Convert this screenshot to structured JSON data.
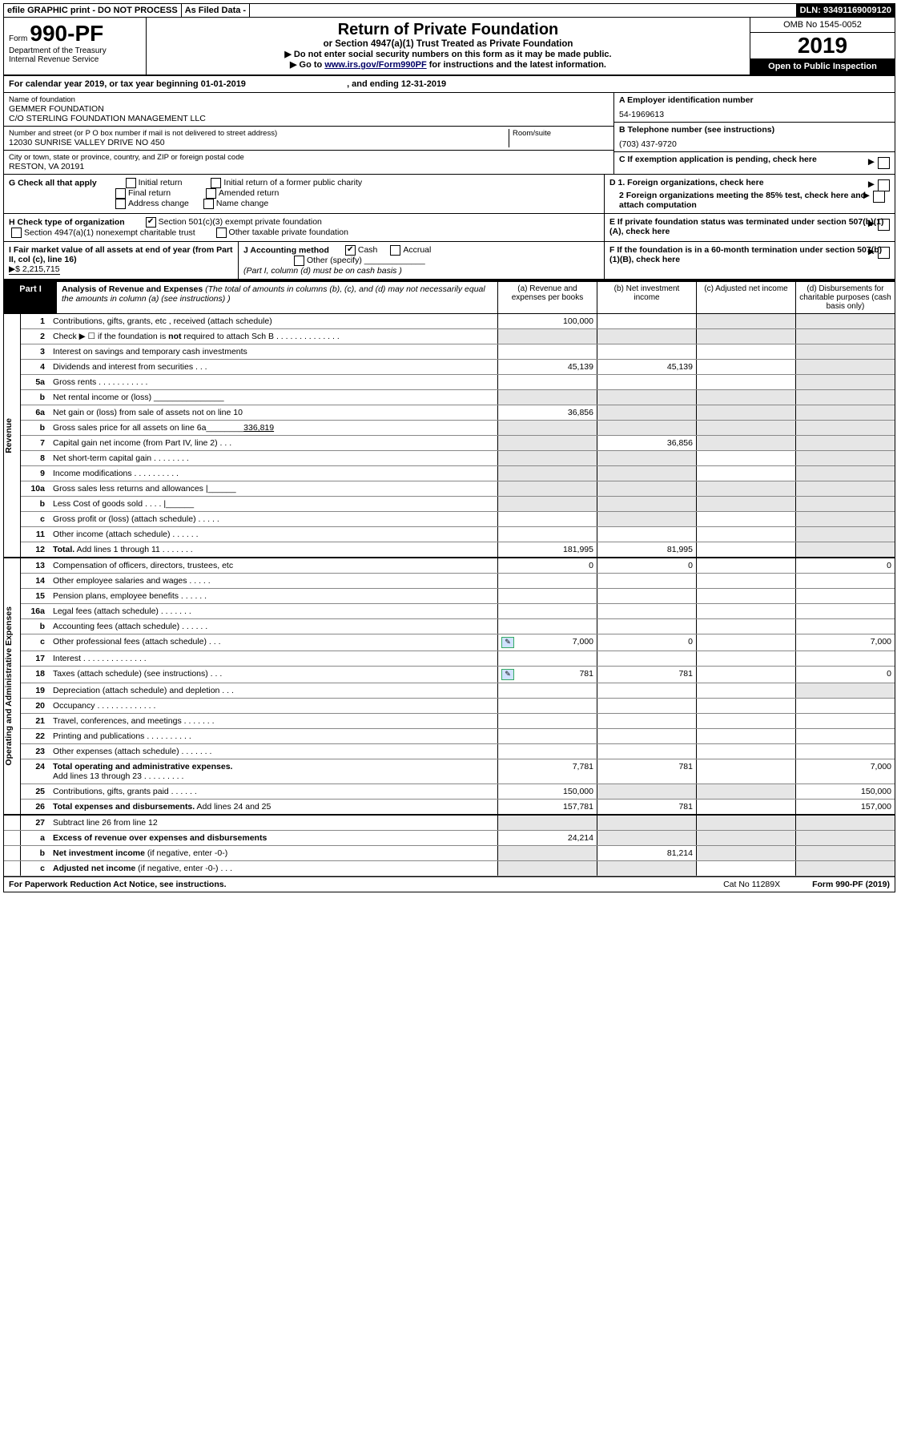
{
  "topbar": {
    "efile": "efile GRAPHIC print - DO NOT PROCESS",
    "asfiled": "As Filed Data -",
    "dln": "DLN: 93491169009120"
  },
  "header": {
    "form_prefix": "Form",
    "form_number": "990-PF",
    "dept": "Department of the Treasury",
    "irs": "Internal Revenue Service",
    "title": "Return of Private Foundation",
    "subtitle": "or Section 4947(a)(1) Trust Treated as Private Foundation",
    "note1": "▶ Do not enter social security numbers on this form as it may be made public.",
    "note2_pre": "▶ Go to ",
    "note2_link": "www.irs.gov/Form990PF",
    "note2_post": " for instructions and the latest information.",
    "omb": "OMB No 1545-0052",
    "year": "2019",
    "inspection": "Open to Public Inspection"
  },
  "cal_year": {
    "text_pre": "For calendar year 2019, or tax year beginning ",
    "begin": "01-01-2019",
    "text_mid": ", and ending ",
    "end": "12-31-2019"
  },
  "entity": {
    "name_label": "Name of foundation",
    "name1": "GEMMER FOUNDATION",
    "name2": "C/O STERLING FOUNDATION MANAGEMENT LLC",
    "addr_label": "Number and street (or P O  box number if mail is not delivered to street address)",
    "room_label": "Room/suite",
    "addr": "12030 SUNRISE VALLEY DRIVE NO 450",
    "city_label": "City or town, state or province, country, and ZIP or foreign postal code",
    "city": "RESTON, VA  20191",
    "a_label": "A Employer identification number",
    "a_val": "54-1969613",
    "b_label": "B Telephone number (see instructions)",
    "b_val": "(703) 437-9720",
    "c_label": "C If exemption application is pending, check here"
  },
  "checks": {
    "g_label": "G Check all that apply",
    "g_opts": [
      "Initial return",
      "Initial return of a former public charity",
      "Final return",
      "Amended return",
      "Address change",
      "Name change"
    ],
    "h_label": "H Check type of organization",
    "h_opt1": "Section 501(c)(3) exempt private foundation",
    "h_opt2": "Section 4947(a)(1) nonexempt charitable trust",
    "h_opt3": "Other taxable private foundation",
    "d1": "D 1. Foreign organizations, check here",
    "d2": "2 Foreign organizations meeting the 85% test, check here and attach computation",
    "e": "E  If private foundation status was terminated under section 507(b)(1)(A), check here",
    "i_label": "I Fair market value of all assets at end of year (from Part II, col  (c), line 16)",
    "i_val": "▶$  2,215,715",
    "j_label": "J Accounting method",
    "j_cash": "Cash",
    "j_accrual": "Accrual",
    "j_other": "Other (specify)",
    "j_note": "(Part I, column (d) must be on cash basis )",
    "f": "F  If the foundation is in a 60-month termination under section 507(b)(1)(B), check here"
  },
  "part1": {
    "label": "Part I",
    "desc_bold": "Analysis of Revenue and Expenses",
    "desc_rest": " (The total of amounts in columns (b), (c), and (d) may not necessarily equal the amounts in column (a) (see instructions) )",
    "col_a": "(a) Revenue and expenses per books",
    "col_b": "(b) Net investment income",
    "col_c": "(c) Adjusted net income",
    "col_d": "(d) Disbursements for charitable purposes (cash basis only)"
  },
  "sections": {
    "revenue": "Revenue",
    "expenses": "Operating and Administrative Expenses"
  },
  "lines": [
    {
      "n": "1",
      "d": "Contributions, gifts, grants, etc , received (attach schedule)",
      "a": "100,000",
      "shade_c": true,
      "shade_d": true
    },
    {
      "n": "2",
      "d": "Check ▶ ☐ if the foundation is <b>not</b> required to attach Sch B  .  .  .  .  .  .  .  .  .  .  .  .  .  .",
      "shade_a": true,
      "shade_b": true,
      "shade_c": true,
      "shade_d": true
    },
    {
      "n": "3",
      "d": "Interest on savings and temporary cash investments",
      "shade_d": true
    },
    {
      "n": "4",
      "d": "Dividends and interest from securities  .  .  .",
      "a": "45,139",
      "b": "45,139",
      "shade_d": true
    },
    {
      "n": "5a",
      "d": "Gross rents  .  .  .  .  .  .  .  .  .  .  .",
      "shade_d": true
    },
    {
      "n": "b",
      "d": "Net rental income or (loss)  _______________",
      "shade_a": true,
      "shade_b": true,
      "shade_c": true,
      "shade_d": true
    },
    {
      "n": "6a",
      "d": "Net gain or (loss) from sale of assets not on line 10",
      "a": "36,856",
      "shade_b": true,
      "shade_c": true,
      "shade_d": true
    },
    {
      "n": "b",
      "d": "Gross sales price for all assets on line 6a________<u>336,819</u>",
      "shade_a": true,
      "shade_b": true,
      "shade_c": true,
      "shade_d": true
    },
    {
      "n": "7",
      "d": "Capital gain net income (from Part IV, line 2)  .  .  .",
      "b": "36,856",
      "shade_a": true,
      "shade_c": true,
      "shade_d": true
    },
    {
      "n": "8",
      "d": "Net short-term capital gain  .  .  .  .  .  .  .  .",
      "shade_a": true,
      "shade_b": true,
      "shade_d": true
    },
    {
      "n": "9",
      "d": "Income modifications .  .  .  .  .  .  .  .  .  .",
      "shade_a": true,
      "shade_b": true,
      "shade_d": true
    },
    {
      "n": "10a",
      "d": "Gross sales less returns and allowances |______",
      "shade_a": true,
      "shade_b": true,
      "shade_c": true,
      "shade_d": true
    },
    {
      "n": "b",
      "d": "Less  Cost of goods sold  .  .  .  . |______",
      "shade_a": true,
      "shade_b": true,
      "shade_c": true,
      "shade_d": true
    },
    {
      "n": "c",
      "d": "Gross profit or (loss) (attach schedule)  .  .  .  .  .",
      "shade_b": true,
      "shade_d": true
    },
    {
      "n": "11",
      "d": "Other income (attach schedule)  .  .  .  .  .  .",
      "shade_d": true
    },
    {
      "n": "12",
      "d": "<b>Total.</b> Add lines 1 through 11 .  .  .  .  .  .  .",
      "a": "181,995",
      "b": "81,995",
      "shade_d": true,
      "bold": true
    }
  ],
  "exp_lines": [
    {
      "n": "13",
      "d": "Compensation of officers, directors, trustees, etc",
      "a": "0",
      "b": "0",
      "dv": "0",
      "sep": true
    },
    {
      "n": "14",
      "d": "Other employee salaries and wages  .  .  .  .  ."
    },
    {
      "n": "15",
      "d": "Pension plans, employee benefits  .  .  .  .  .  ."
    },
    {
      "n": "16a",
      "d": "Legal fees (attach schedule) .  .  .  .  .  .  ."
    },
    {
      "n": "b",
      "d": "Accounting fees (attach schedule) .  .  .  .  .  ."
    },
    {
      "n": "c",
      "d": "Other professional fees (attach schedule)  .  .  .",
      "a": "7,000",
      "b": "0",
      "dv": "7,000",
      "icon": true
    },
    {
      "n": "17",
      "d": "Interest .  .  .  .  .  .  .  .  .  .  .  .  .  ."
    },
    {
      "n": "18",
      "d": "Taxes (attach schedule) (see instructions)  .  .  .",
      "a": "781",
      "b": "781",
      "dv": "0",
      "icon": true
    },
    {
      "n": "19",
      "d": "Depreciation (attach schedule) and depletion  .  .  .",
      "shade_d": true
    },
    {
      "n": "20",
      "d": "Occupancy .  .  .  .  .  .  .  .  .  .  .  .  ."
    },
    {
      "n": "21",
      "d": "Travel, conferences, and meetings .  .  .  .  .  .  ."
    },
    {
      "n": "22",
      "d": "Printing and publications .  .  .  .  .  .  .  .  .  ."
    },
    {
      "n": "23",
      "d": "Other expenses (attach schedule) .  .  .  .  .  .  ."
    },
    {
      "n": "24",
      "d": "<b>Total operating and administrative expenses.</b><br>Add lines 13 through 23 .  .  .  .  .  .  .  .  .",
      "a": "7,781",
      "b": "781",
      "dv": "7,000"
    },
    {
      "n": "25",
      "d": "Contributions, gifts, grants paid  .  .  .  .  .  .",
      "a": "150,000",
      "shade_b": true,
      "shade_c": true,
      "dv": "150,000"
    },
    {
      "n": "26",
      "d": "<b>Total expenses and disbursements.</b> Add lines 24 and 25",
      "a": "157,781",
      "b": "781",
      "dv": "157,000"
    }
  ],
  "final_lines": [
    {
      "n": "27",
      "d": "Subtract line 26 from line 12",
      "shade_a": true,
      "shade_b": true,
      "shade_c": true,
      "shade_d": true,
      "sep": true
    },
    {
      "n": "a",
      "d": "<b>Excess of revenue over expenses and disbursements</b>",
      "a": "24,214",
      "shade_b": true,
      "shade_c": true,
      "shade_d": true
    },
    {
      "n": "b",
      "d": "<b>Net investment income</b> (if negative, enter -0-)",
      "b": "81,214",
      "shade_a": true,
      "shade_c": true,
      "shade_d": true
    },
    {
      "n": "c",
      "d": "<b>Adjusted net income</b> (if negative, enter -0-)  .  .  .",
      "shade_a": true,
      "shade_b": true,
      "shade_d": true
    }
  ],
  "footer": {
    "left": "For Paperwork Reduction Act Notice, see instructions.",
    "mid": "Cat  No  11289X",
    "right": "Form 990-PF (2019)"
  }
}
